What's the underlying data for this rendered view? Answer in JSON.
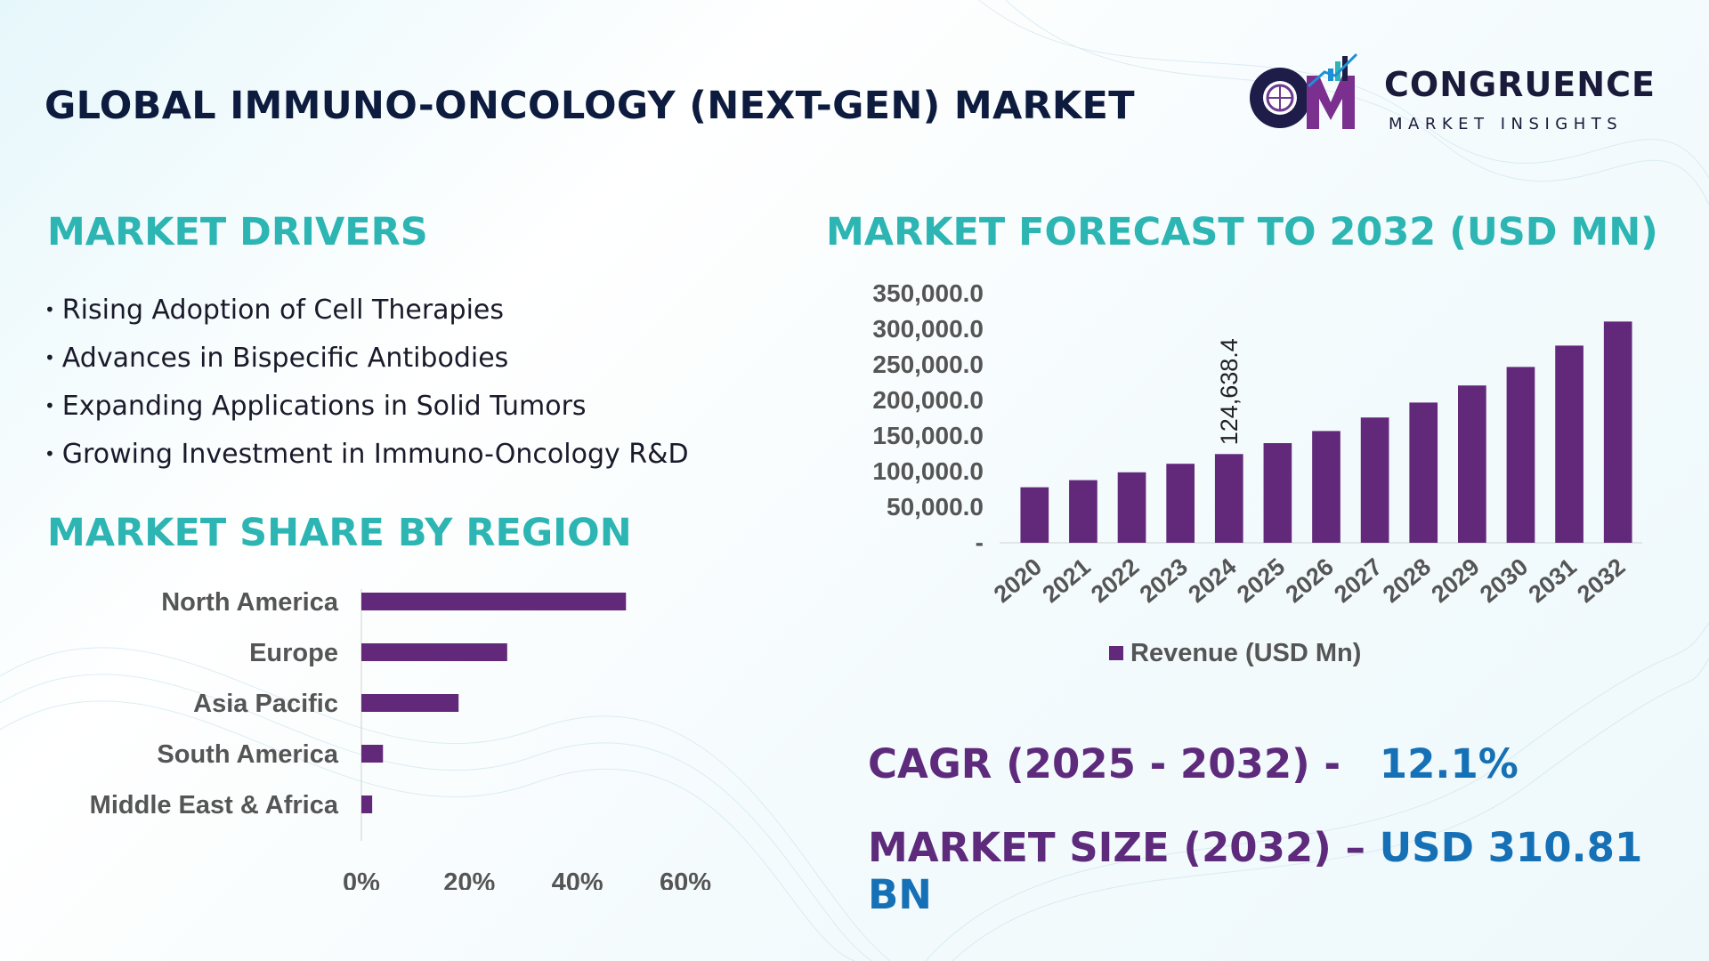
{
  "header": {
    "title": "GLOBAL IMMUNO-ONCOLOGY (NEXT-GEN) MARKET",
    "logo_name": "CONGRUENCE",
    "logo_tagline": "MARKET INSIGHTS"
  },
  "drivers": {
    "title": "MARKET DRIVERS",
    "items": [
      "Rising Adoption of Cell Therapies",
      "Advances in Bispecific Antibodies",
      "Expanding Applications in Solid Tumors",
      "Growing Investment in Immuno-Oncology R&D"
    ]
  },
  "region": {
    "title": "MARKET SHARE BY REGION"
  },
  "forecast": {
    "title": "MARKET FORECAST TO 2032 (USD MN)"
  },
  "stats": {
    "cagr_label": "CAGR (2025 - 2032) -",
    "cagr_value": "12.1%",
    "size_label": "MARKET SIZE (2032) –",
    "size_value": "USD 310.81 BN"
  },
  "colors": {
    "bar": "#62287a",
    "teal_heading": "#2cb5b2",
    "stat_label": "#5d2a7c",
    "stat_value": "#1670b5"
  },
  "chart_data": [
    {
      "type": "bar",
      "orientation": "vertical",
      "categories": [
        "2020",
        "2021",
        "2022",
        "2023",
        "2024",
        "2025",
        "2026",
        "2027",
        "2028",
        "2029",
        "2030",
        "2031",
        "2032"
      ],
      "series": [
        {
          "name": "Revenue (USD Mn)",
          "values": [
            78000,
            88000,
            99000,
            111000,
            124638.4,
            140000,
            157000,
            176000,
            197000,
            221000,
            247000,
            277000,
            310810
          ]
        }
      ],
      "data_labels": [
        {
          "category": "2024",
          "text": "124,638.4"
        }
      ],
      "yticks": [
        "-",
        "50,000.0",
        "100,000.0",
        "150,000.0",
        "200,000.0",
        "250,000.0",
        "300,000.0",
        "350,000.0"
      ],
      "ylim": [
        0,
        350000
      ],
      "legend": "bottom",
      "grid": false
    },
    {
      "type": "bar",
      "orientation": "horizontal",
      "categories": [
        "North America",
        "Europe",
        "Asia Pacific",
        "South America",
        "Middle East & Africa"
      ],
      "values": [
        49,
        27,
        18,
        4,
        2
      ],
      "xticks": [
        "0%",
        "20%",
        "40%",
        "60%"
      ],
      "xlim": [
        0,
        60
      ],
      "grid": false
    }
  ]
}
